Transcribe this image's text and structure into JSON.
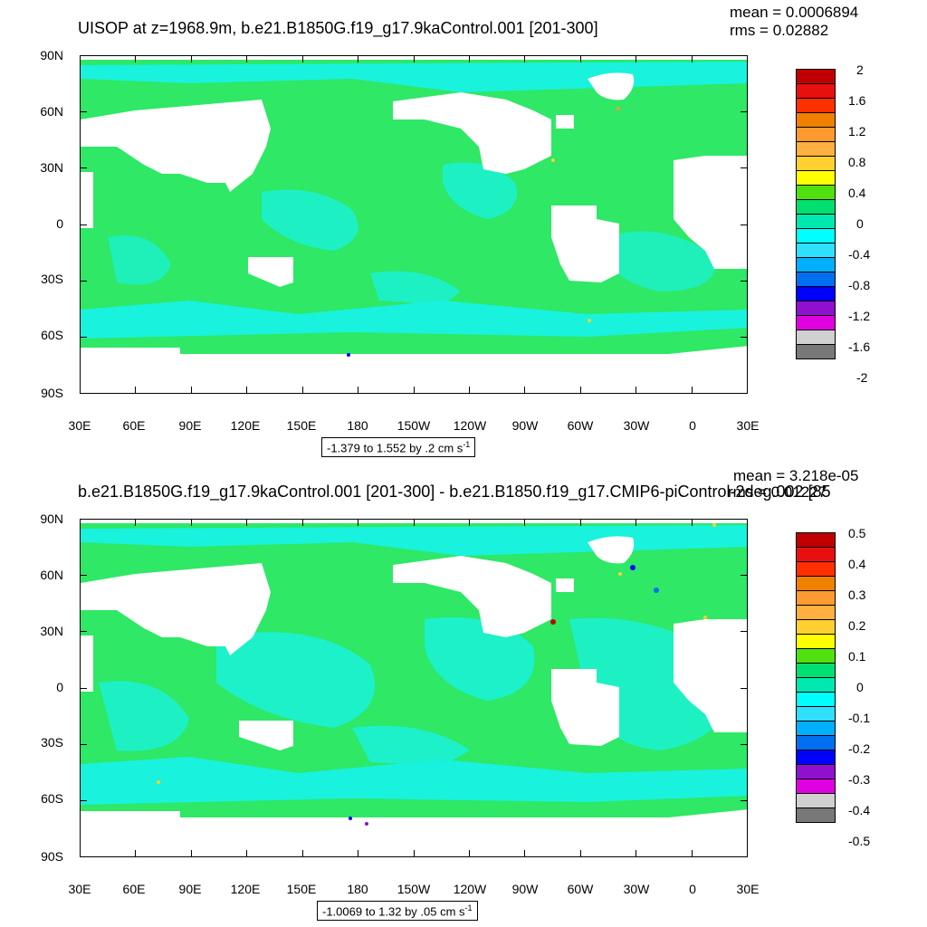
{
  "panels": [
    {
      "title": "UISOP at z=1968.9m, b.e21.B1850G.f19_g17.9kaControl.001 [201-300]",
      "mean": "mean = 0.0006894",
      "rms": "rms = 0.02882",
      "y_labels": [
        "90N",
        "60N",
        "30N",
        "0",
        "30S",
        "60S",
        "90S"
      ],
      "x_labels": [
        "30E",
        "60E",
        "90E",
        "120E",
        "150E",
        "180",
        "150W",
        "120W",
        "90W",
        "60W",
        "30W",
        "0",
        "30E"
      ],
      "info_text": "-1.379 to 1.552 by .2 cm s",
      "info_sup": "-1",
      "colorbar_labels": [
        "2",
        "1.6",
        "1.2",
        "0.8",
        "0.4",
        "0",
        "-0.4",
        "-0.8",
        "-1.2",
        "-1.6",
        "-2"
      ]
    },
    {
      "title": "b.e21.B1850G.f19_g17.9kaControl.001 [201-300] - b.e21.B1850.f19_g17.CMIP6-piControl-2deg.002 [85",
      "mean": "mean = 3.218e-05",
      "rms": "rms = 0.01227",
      "y_labels": [
        "90N",
        "60N",
        "30N",
        "0",
        "30S",
        "60S",
        "90S"
      ],
      "x_labels": [
        "30E",
        "60E",
        "90E",
        "120E",
        "150E",
        "180",
        "150W",
        "120W",
        "90W",
        "60W",
        "30W",
        "0",
        "30E"
      ],
      "info_text": "-1.0069 to 1.32 by .05 cm s",
      "info_sup": "-1",
      "colorbar_labels": [
        "0.5",
        "0.4",
        "0.3",
        "0.2",
        "0.1",
        "0",
        "-0.1",
        "-0.2",
        "-0.3",
        "-0.4",
        "-0.5"
      ]
    }
  ],
  "colors": {
    "palette": [
      "#c00000",
      "#e8100e",
      "#ff3000",
      "#f08000",
      "#ff9a30",
      "#ffb040",
      "#ffd030",
      "#ffff00",
      "#50e010",
      "#00e070",
      "#00e8b0",
      "#00ffff",
      "#30e0ff",
      "#00b0ff",
      "#0070f0",
      "#0000ff",
      "#9010d0",
      "#e000e0",
      "#d0d0d0",
      "#787878"
    ],
    "ocean_main": "#2ee866",
    "ocean_alt": "#19f2dc",
    "land": "#ffffff"
  }
}
